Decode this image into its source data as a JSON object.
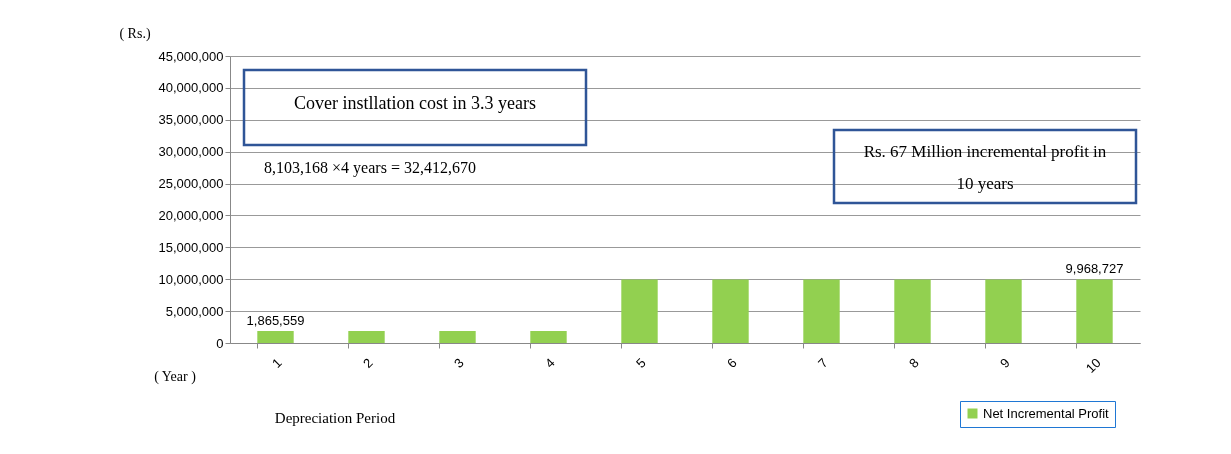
{
  "chart_data": {
    "type": "bar",
    "ylabel": "( Rs.)",
    "xlabel": "( Year )",
    "categories": [
      "1",
      "2",
      "3",
      "4",
      "5",
      "6",
      "7",
      "8",
      "9",
      "10"
    ],
    "series": [
      {
        "name": "Net Incremental Profit",
        "color": "#92d050",
        "values": [
          1865559,
          1865559,
          1865559,
          1865559,
          9968727,
          9968727,
          9968727,
          9968727,
          9968727,
          9968727
        ],
        "value_labels": [
          "1,865,559",
          null,
          null,
          null,
          null,
          null,
          null,
          null,
          null,
          "9,968,727"
        ]
      }
    ],
    "ylim": [
      0,
      45000000
    ],
    "yticks": [
      0,
      {
        "value": 5000000,
        "label": "5,000,000"
      },
      {
        "value": 10000000,
        "label": "10,000,000"
      },
      {
        "value": 15000000,
        "label": "15,000,000"
      },
      {
        "value": 20000000,
        "label": "20,000,000"
      },
      {
        "value": 25000000,
        "label": "25,000,000"
      },
      {
        "value": 30000000,
        "label": "30,000,000"
      },
      {
        "value": 35000000,
        "label": "35,000,000"
      },
      {
        "value": 40000000,
        "label": "40,000,000"
      },
      {
        "value": 45000000,
        "label": "45,000,000"
      }
    ],
    "grid": "y",
    "legend": "bottom right",
    "annotations": [
      "Cover instllation cost in 3.3 years",
      "8,103,168 ×4 years = 32,412,670",
      "Rs. 67 Million incremental profit in 10 years",
      "Depreciation Period"
    ]
  }
}
